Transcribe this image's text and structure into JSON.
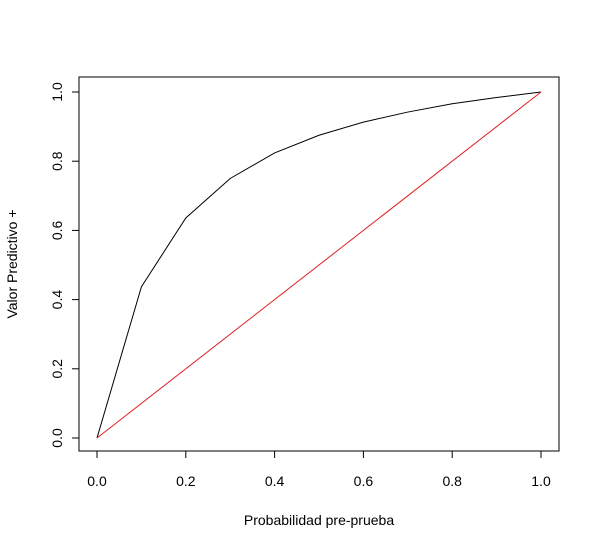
{
  "chart_data": {
    "type": "line",
    "title": "",
    "xlabel": "Probabilidad pre-prueba",
    "ylabel": "Valor Predictivo +",
    "xlim": [
      0,
      1
    ],
    "ylim": [
      0,
      1
    ],
    "grid": false,
    "x_ticks": [
      0.0,
      0.2,
      0.4,
      0.6,
      0.8,
      1.0
    ],
    "x_tick_labels": [
      "0.0",
      "0.2",
      "0.4",
      "0.6",
      "0.8",
      "1.0"
    ],
    "y_ticks": [
      0.0,
      0.2,
      0.4,
      0.6,
      0.8,
      1.0
    ],
    "y_tick_labels": [
      "0.0",
      "0.2",
      "0.4",
      "0.6",
      "0.8",
      "1.0"
    ],
    "series": [
      {
        "color": "#000000",
        "x": [
          0.0,
          0.1,
          0.2,
          0.3,
          0.4,
          0.5,
          0.6,
          0.7,
          0.8,
          0.9,
          1.0
        ],
        "y": [
          0.0,
          0.437,
          0.636,
          0.75,
          0.824,
          0.875,
          0.913,
          0.942,
          0.966,
          0.984,
          1.0
        ]
      },
      {
        "color": "#e02020",
        "x": [
          0.0,
          1.0
        ],
        "y": [
          0.0,
          1.0
        ]
      }
    ]
  }
}
